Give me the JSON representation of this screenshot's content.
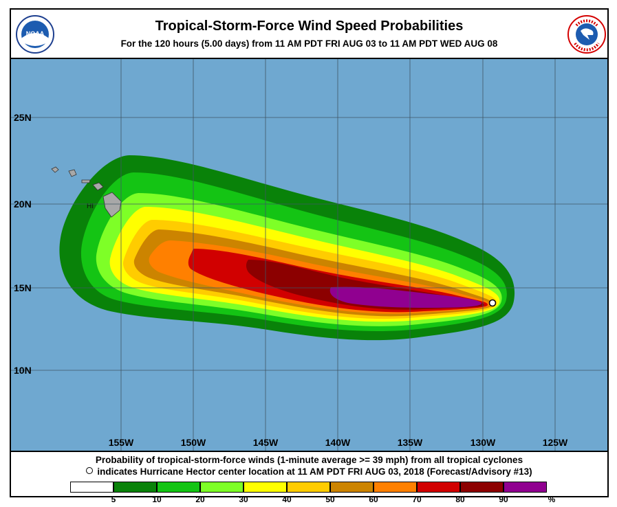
{
  "header": {
    "title": "Tropical-Storm-Force Wind Speed Probabilities",
    "subtitle": "For the 120 hours (5.00 days) from 11 AM PDT FRI AUG 03 to 11 AM PDT WED AUG 08",
    "logo_left_text": "NOAA",
    "logo_right_text": "NATIONAL WEATHER SERVICE"
  },
  "map": {
    "lat_labels": [
      "25N",
      "20N",
      "15N",
      "10N"
    ],
    "lon_labels": [
      "155W",
      "150W",
      "145W",
      "140W",
      "135W",
      "130W",
      "125W"
    ],
    "state_label": "HI",
    "ocean_color": "#6fa8d0",
    "land_color": "#a8a8a8"
  },
  "footer": {
    "caption_line1": "Probability of tropical-storm-force winds (1-minute average >= 39 mph) from all tropical cyclones",
    "caption_line2": "indicates Hurricane Hector center location at 11 AM PDT FRI AUG 03, 2018 (Forecast/Advisory #13)"
  },
  "legend": {
    "colors": [
      "#ffffff",
      "#098209",
      "#14c414",
      "#7eff27",
      "#ffff00",
      "#ffcc00",
      "#cc8400",
      "#ff8000",
      "#d10000",
      "#8c0000",
      "#900090"
    ],
    "labels": [
      "5",
      "10",
      "20",
      "30",
      "40",
      "50",
      "60",
      "70",
      "80",
      "90",
      "%"
    ]
  }
}
